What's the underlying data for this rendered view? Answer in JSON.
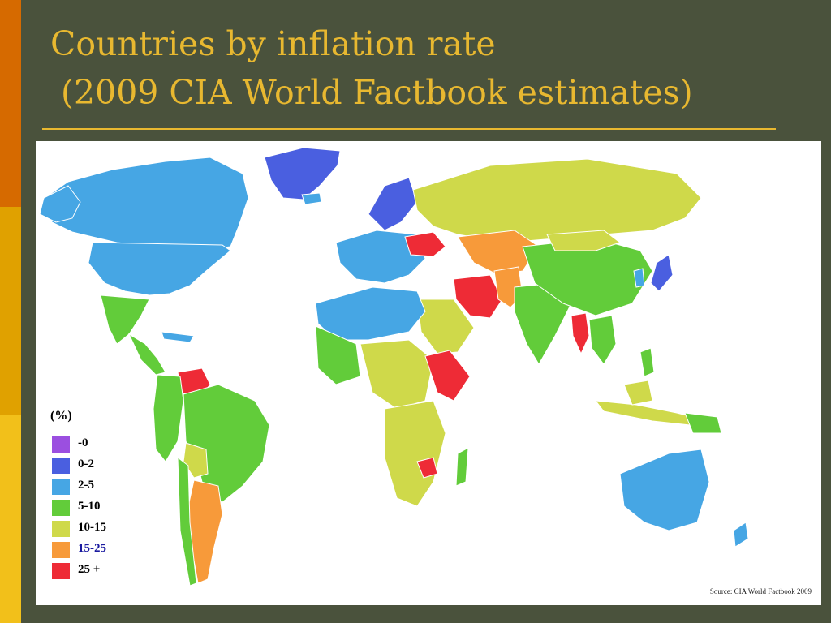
{
  "slide": {
    "title": "Countries by inflation rate\n (2009 CIA World Factbook estimates)",
    "title_color": "#e8b830",
    "rule_color": "#e8b830",
    "background": "#4a523c",
    "accent_colors": [
      "#d66a00",
      "#e0a100",
      "#f2c01a"
    ]
  },
  "map": {
    "legend_title": "(%)",
    "legend": [
      {
        "label": "-0",
        "color": "#9b4fe0",
        "label_color": "#000000"
      },
      {
        "label": "0-2",
        "color": "#4a5fe0",
        "label_color": "#000000"
      },
      {
        "label": "2-5",
        "color": "#46a6e4",
        "label_color": "#000000"
      },
      {
        "label": "5-10",
        "color": "#62cc3a",
        "label_color": "#000000"
      },
      {
        "label": "10-15",
        "color": "#cfd94a",
        "label_color": "#000000"
      },
      {
        "label": "15-25",
        "color": "#f79a3a",
        "label_color": "#1a1aa0"
      },
      {
        "label": "25 +",
        "color": "#ee2b36",
        "label_color": "#000000"
      }
    ],
    "no_data_color": "#9a9a9a",
    "source": "Source: CIA World Factbook 2009"
  }
}
